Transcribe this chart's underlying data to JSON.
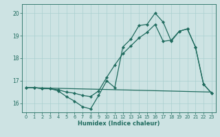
{
  "xlabel": "Humidex (Indice chaleur)",
  "xlim": [
    -0.5,
    23.5
  ],
  "ylim": [
    15.6,
    20.4
  ],
  "yticks": [
    16,
    17,
    18,
    19,
    20
  ],
  "xticks": [
    0,
    1,
    2,
    3,
    4,
    5,
    6,
    7,
    8,
    9,
    10,
    11,
    12,
    13,
    14,
    15,
    16,
    17,
    18,
    19,
    20,
    21,
    22,
    23
  ],
  "bg_color": "#cde3e3",
  "line_color": "#1f6b5e",
  "grid_color": "#aacfcf",
  "line1_x": [
    0,
    1,
    2,
    3,
    4,
    5,
    6,
    7,
    8,
    9,
    10,
    11,
    12,
    13,
    14,
    15,
    16,
    17,
    18,
    19,
    20,
    21,
    22,
    23
  ],
  "line1_y": [
    16.7,
    16.7,
    16.65,
    16.65,
    16.55,
    16.3,
    16.1,
    15.85,
    15.75,
    16.35,
    17.0,
    16.7,
    18.5,
    18.85,
    19.45,
    19.5,
    20.0,
    19.6,
    18.75,
    19.2,
    19.3,
    18.5,
    16.85,
    16.45
  ],
  "line2_x": [
    0,
    1,
    2,
    3,
    4,
    5,
    6,
    7,
    8,
    9,
    10,
    11,
    12,
    13,
    14,
    15,
    16,
    17,
    18,
    19,
    20,
    21,
    22,
    23
  ],
  "line2_y": [
    16.7,
    16.7,
    16.65,
    16.65,
    16.6,
    16.5,
    16.45,
    16.35,
    16.3,
    16.55,
    17.15,
    17.7,
    18.2,
    18.55,
    18.9,
    19.15,
    19.5,
    18.75,
    18.8,
    19.2,
    19.3,
    18.5,
    16.85,
    16.45
  ],
  "line3_x": [
    0,
    23
  ],
  "line3_y": [
    16.7,
    16.5
  ]
}
